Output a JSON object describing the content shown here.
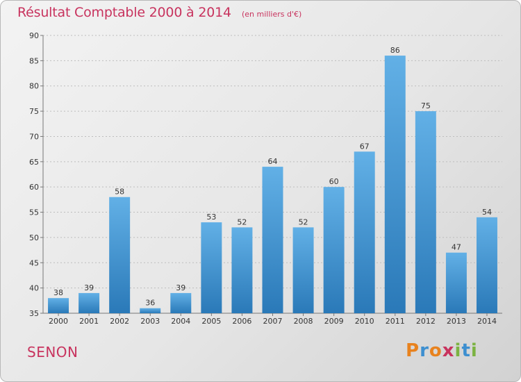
{
  "header": {
    "title": "Résultat Comptable 2000 à 2014",
    "unit": "(en milliers d'€)"
  },
  "footer": {
    "commune": "SENON",
    "logo_text": "Proxiti"
  },
  "colors": {
    "title": "#c8335e",
    "bar_top": "#62b0e6",
    "bar_bottom": "#2a79b8",
    "logo_letters": [
      "#e8821e",
      "#3d8fd0",
      "#e8821e",
      "#c8335e",
      "#7cb342",
      "#3d8fd0",
      "#7cb342"
    ]
  },
  "chart_data": {
    "type": "bar",
    "title": "Résultat Comptable 2000 à 2014",
    "subtitle": "(en milliers d'€)",
    "categories": [
      "2000",
      "2001",
      "2002",
      "2003",
      "2004",
      "2005",
      "2006",
      "2007",
      "2008",
      "2009",
      "2010",
      "2011",
      "2012",
      "2013",
      "2014"
    ],
    "values": [
      38,
      39,
      58,
      36,
      39,
      53,
      52,
      64,
      52,
      60,
      67,
      86,
      75,
      47,
      54
    ],
    "ylim": [
      35,
      90
    ],
    "yticks": [
      35,
      40,
      45,
      50,
      55,
      60,
      65,
      70,
      75,
      80,
      85,
      90
    ],
    "grid": true,
    "xlabel": "",
    "ylabel": ""
  }
}
